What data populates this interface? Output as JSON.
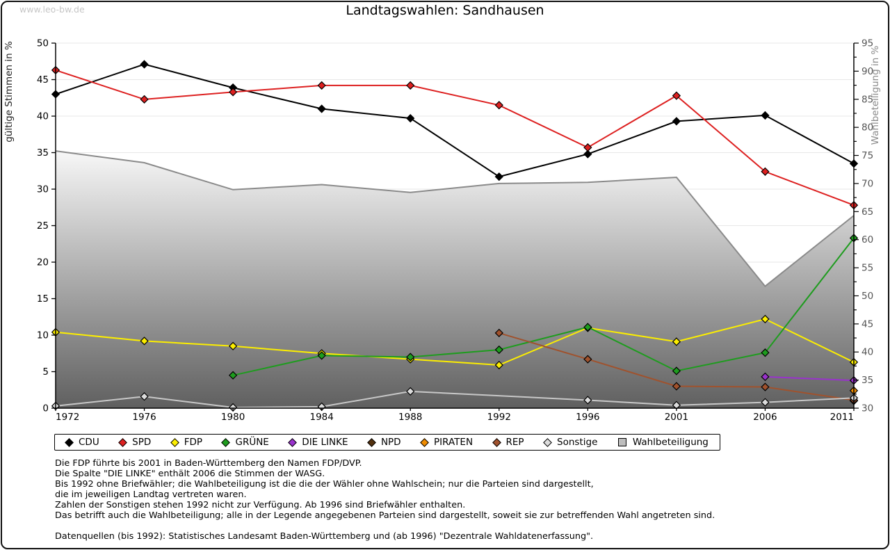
{
  "watermark": "www.leo-bw.de",
  "title": "Landtagswahlen: Sandhausen",
  "chart_data": {
    "type": "line",
    "title": "Landtagswahlen: Sandhausen",
    "categories": [
      "1972",
      "1976",
      "1980",
      "1984",
      "1988",
      "1992",
      "1996",
      "2001",
      "2006",
      "2011"
    ],
    "left_axis": {
      "label": "gültige Stimmen in %",
      "min": 0,
      "max": 50,
      "tick_step": 5
    },
    "right_axis": {
      "label": "Wahlbeteiligung in %",
      "min": 30,
      "max": 95,
      "tick_step": 5,
      "minor_step": 2.5
    },
    "grid": true,
    "legend_position": "bottom",
    "series": [
      {
        "name": "CDU",
        "color": "#000000",
        "axis": "left",
        "values": [
          43.0,
          47.1,
          43.9,
          41.0,
          39.7,
          31.7,
          34.8,
          39.3,
          40.1,
          33.5
        ]
      },
      {
        "name": "SPD",
        "color": "#dd2020",
        "axis": "left",
        "values": [
          46.3,
          42.3,
          43.3,
          44.2,
          44.2,
          41.5,
          35.7,
          42.8,
          32.4,
          27.8
        ]
      },
      {
        "name": "FDP",
        "color": "#fcee00",
        "axis": "left",
        "values": [
          10.4,
          9.2,
          8.5,
          7.5,
          6.7,
          5.9,
          11.0,
          9.1,
          12.2,
          6.3
        ]
      },
      {
        "name": "GRÜNE",
        "color": "#1e9c1e",
        "axis": "left",
        "values": [
          null,
          null,
          4.5,
          7.2,
          7.0,
          8.0,
          11.1,
          5.1,
          7.6,
          23.3
        ]
      },
      {
        "name": "DIE LINKE",
        "color": "#9932cc",
        "axis": "left",
        "values": [
          null,
          null,
          null,
          null,
          null,
          null,
          null,
          null,
          4.3,
          3.8
        ]
      },
      {
        "name": "NPD",
        "color": "#52300e",
        "axis": "left",
        "values": [
          null,
          null,
          null,
          null,
          null,
          null,
          null,
          null,
          null,
          1.0
        ]
      },
      {
        "name": "PIRATEN",
        "color": "#ef8c00",
        "axis": "left",
        "values": [
          null,
          null,
          null,
          null,
          null,
          null,
          null,
          null,
          null,
          2.4
        ]
      },
      {
        "name": "REP",
        "color": "#a0522d",
        "axis": "left",
        "values": [
          null,
          null,
          null,
          null,
          null,
          10.3,
          6.7,
          3.0,
          2.9,
          1.1
        ]
      },
      {
        "name": "Sonstige",
        "color": "#c8c8c8",
        "marker_fill": "#dcdcdc",
        "axis": "left",
        "values": [
          0.3,
          1.6,
          0.1,
          0.2,
          2.3,
          null,
          1.1,
          0.4,
          0.8,
          1.4
        ]
      }
    ],
    "turnout_area": {
      "name": "Wahlbeteiligung",
      "axis": "right",
      "values": [
        75.8,
        73.7,
        68.9,
        69.8,
        68.4,
        70.0,
        70.2,
        71.1,
        51.7,
        64.3
      ],
      "edge_color": "#8a8a8a",
      "fill_top": "#f8f8f8",
      "fill_bottom": "#5e5e5e"
    }
  },
  "legend": {
    "items": [
      {
        "label": "CDU",
        "color": "#000000",
        "shape": "diamond"
      },
      {
        "label": "SPD",
        "color": "#dd2020",
        "shape": "diamond"
      },
      {
        "label": "FDP",
        "color": "#fcee00",
        "shape": "diamond"
      },
      {
        "label": "GRÜNE",
        "color": "#1e9c1e",
        "shape": "diamond"
      },
      {
        "label": "DIE LINKE",
        "color": "#9932cc",
        "shape": "diamond"
      },
      {
        "label": "NPD",
        "color": "#52300e",
        "shape": "diamond"
      },
      {
        "label": "PIRATEN",
        "color": "#ef8c00",
        "shape": "diamond"
      },
      {
        "label": "REP",
        "color": "#a0522d",
        "shape": "diamond"
      },
      {
        "label": "Sonstige",
        "color": "#dcdcdc",
        "shape": "diamond"
      },
      {
        "label": "Wahlbeteiligung",
        "color": "#bdbdbd",
        "shape": "square"
      }
    ]
  },
  "footnotes": [
    "Die FDP führte bis 2001 in Baden-Württemberg den Namen FDP/DVP.",
    "Die Spalte \"DIE LINKE\" enthält 2006 die Stimmen der WASG.",
    "Bis 1992 ohne Briefwähler; die Wahlbeteiligung ist die die der Wähler ohne Wahlschein; nur die Parteien sind dargestellt,",
    "die im jeweiligen Landtag vertreten waren.",
    "Zahlen der Sonstigen stehen 1992 nicht zur Verfügung. Ab 1996 sind Briefwähler enthalten.",
    "Das betrifft auch die Wahlbeteiligung; alle in der Legende angegebenen Parteien sind dargestellt, soweit sie zur betreffenden Wahl angetreten sind.",
    "",
    "Datenquellen (bis 1992): Statistisches Landesamt Baden-Württemberg und (ab 1996) \"Dezentrale Wahldatenerfassung\"."
  ]
}
